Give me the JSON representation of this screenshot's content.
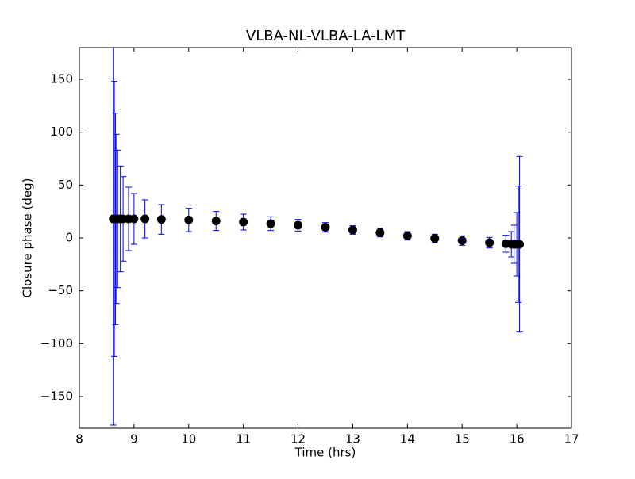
{
  "chart_data": {
    "type": "errorbar",
    "title": "VLBA-NL-VLBA-LA-LMT",
    "xlabel": "Time (hrs)",
    "ylabel": "Closure phase (deg)",
    "x": [
      8.62,
      8.64,
      8.66,
      8.68,
      8.7,
      8.75,
      8.8,
      8.9,
      9.0,
      9.2,
      9.5,
      10,
      10.5,
      11,
      11.5,
      12,
      12.5,
      13,
      13.5,
      14,
      14.5,
      15,
      15.5,
      15.8,
      15.9,
      15.95,
      16.0,
      16.03,
      16.05
    ],
    "values": [
      18,
      18,
      18,
      18,
      18,
      18,
      18,
      18,
      18,
      18,
      17.5,
      17,
      16,
      15,
      13.5,
      12,
      10,
      7.5,
      5,
      2,
      -0.5,
      -2.5,
      -4.5,
      -5.5,
      -6,
      -6,
      -6,
      -6,
      -6
    ],
    "errors": [
      195,
      130,
      100,
      80,
      65,
      50,
      40,
      30,
      24,
      18,
      14,
      11,
      9,
      7.5,
      6.5,
      5.5,
      4.5,
      4,
      4,
      4,
      4,
      4.5,
      5,
      8,
      12,
      18,
      30,
      55,
      83
    ],
    "color": "#0000ff",
    "marker_color": "#000000",
    "xlim": [
      8,
      17
    ],
    "ylim": [
      -180,
      180
    ],
    "xticks": [
      8,
      9,
      10,
      11,
      12,
      13,
      14,
      15,
      16,
      17
    ],
    "yticks": [
      {
        "value": -150,
        "label": "−150"
      },
      {
        "value": -100,
        "label": "−100"
      },
      {
        "value": -50,
        "label": "−50"
      },
      0,
      50,
      100,
      150
    ]
  }
}
